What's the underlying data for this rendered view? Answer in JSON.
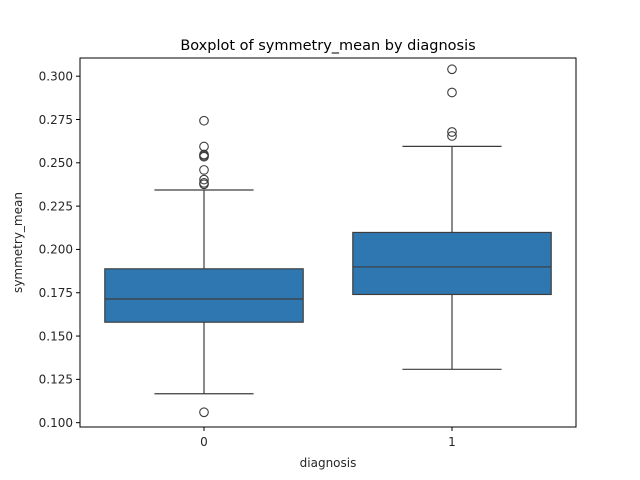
{
  "chart_data": {
    "type": "boxplot",
    "title": "Boxplot of symmetry_mean by diagnosis",
    "xlabel": "diagnosis",
    "ylabel": "symmetry_mean",
    "categories": [
      "0",
      "1"
    ],
    "ylim": [
      0.0975,
      0.3105
    ],
    "y_ticks": [
      "0.100",
      "0.125",
      "0.150",
      "0.175",
      "0.200",
      "0.225",
      "0.250",
      "0.275",
      "0.300"
    ],
    "grid": false,
    "box_color": "#2f77b1",
    "boxes": [
      {
        "category": "0",
        "whisker_low": 0.1167,
        "q1": 0.158,
        "median": 0.1714,
        "q3": 0.1888,
        "whisker_high": 0.2343,
        "outliers": [
          0.106,
          0.2376,
          0.2384,
          0.2403,
          0.2459,
          0.2535,
          0.2541,
          0.2548,
          0.2594,
          0.2743
        ]
      },
      {
        "category": "1",
        "whisker_low": 0.1308,
        "q1": 0.174,
        "median": 0.1899,
        "q3": 0.2098,
        "whisker_high": 0.2595,
        "outliers": [
          0.2655,
          0.2678,
          0.2906,
          0.304
        ]
      }
    ]
  }
}
